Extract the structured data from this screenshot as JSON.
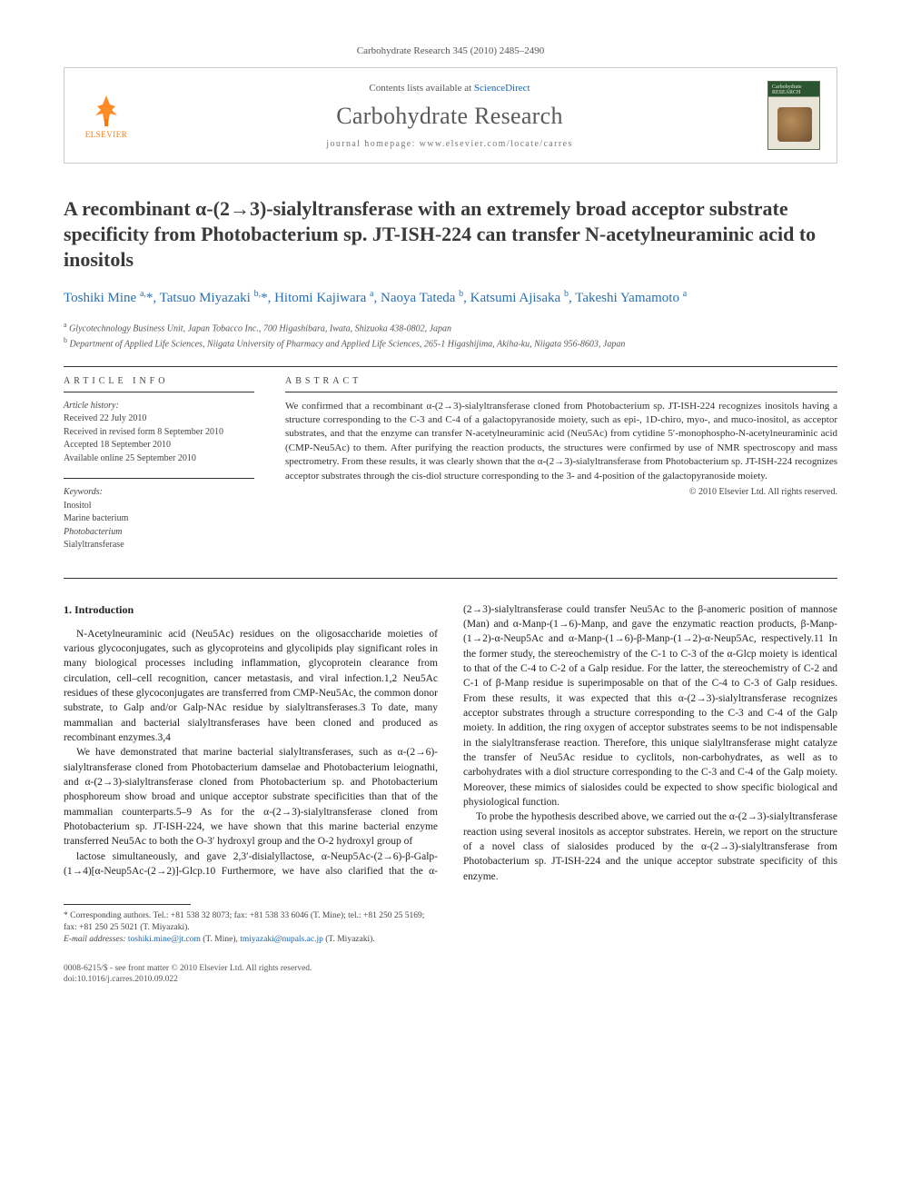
{
  "journal_ref": "Carbohydrate Research 345 (2010) 2485–2490",
  "header": {
    "elsevier_label": "ELSEVIER",
    "contents_prefix": "Contents lists available at ",
    "contents_link": "ScienceDirect",
    "journal_title": "Carbohydrate Research",
    "homepage": "journal homepage: www.elsevier.com/locate/carres",
    "cover_label": "Carbohydrate RESEARCH"
  },
  "title": "A recombinant α-(2→3)-sialyltransferase with an extremely broad acceptor substrate specificity from Photobacterium sp. JT-ISH-224 can transfer N-acetylneuraminic acid to inositols",
  "authors_html": "Toshiki Mine <sup>a,</sup>*, Tatsuo Miyazaki <sup>b,</sup>*, Hitomi Kajiwara <sup>a</sup>, Naoya Tateda <sup>b</sup>, Katsumi Ajisaka <sup>b</sup>, Takeshi Yamamoto <sup>a</sup>",
  "affiliations": [
    {
      "sup": "a",
      "text": "Glycotechnology Business Unit, Japan Tobacco Inc., 700 Higashibara, Iwata, Shizuoka 438-0802, Japan"
    },
    {
      "sup": "b",
      "text": "Department of Applied Life Sciences, Niigata University of Pharmacy and Applied Life Sciences, 265-1 Higashijima, Akiha-ku, Niigata 956-8603, Japan"
    }
  ],
  "info": {
    "head": "ARTICLE INFO",
    "history_label": "Article history:",
    "history": [
      "Received 22 July 2010",
      "Received in revised form 8 September 2010",
      "Accepted 18 September 2010",
      "Available online 25 September 2010"
    ],
    "keywords_label": "Keywords:",
    "keywords": [
      "Inositol",
      "Marine bacterium",
      "Photobacterium",
      "Sialyltransferase"
    ]
  },
  "abstract": {
    "head": "ABSTRACT",
    "text": "We confirmed that a recombinant α-(2→3)-sialyltransferase cloned from Photobacterium sp. JT-ISH-224 recognizes inositols having a structure corresponding to the C-3 and C-4 of a galactopyranoside moiety, such as epi-, 1D-chiro, myo-, and muco-inositol, as acceptor substrates, and that the enzyme can transfer N-acetylneuraminic acid (Neu5Ac) from cytidine 5′-monophospho-N-acetylneuraminic acid (CMP-Neu5Ac) to them. After purifying the reaction products, the structures were confirmed by use of NMR spectroscopy and mass spectrometry. From these results, it was clearly shown that the α-(2→3)-sialyltransferase from Photobacterium sp. JT-ISH-224 recognizes acceptor substrates through the cis-diol structure corresponding to the 3- and 4-position of the galactopyranoside moiety.",
    "copyright": "© 2010 Elsevier Ltd. All rights reserved."
  },
  "intro": {
    "head": "1. Introduction",
    "p1": "N-Acetylneuraminic acid (Neu5Ac) residues on the oligosaccharide moieties of various glycoconjugates, such as glycoproteins and glycolipids play significant roles in many biological processes including inflammation, glycoprotein clearance from circulation, cell–cell recognition, cancer metastasis, and viral infection.1,2 Neu5Ac residues of these glycoconjugates are transferred from CMP-Neu5Ac, the common donor substrate, to Galp and/or Galp-NAc residue by sialyltransferases.3 To date, many mammalian and bacterial sialyltransferases have been cloned and produced as recombinant enzymes.3,4",
    "p2": "We have demonstrated that marine bacterial sialyltransferases, such as α-(2→6)-sialyltransferase cloned from Photobacterium damselae and Photobacterium leiognathi, and α-(2→3)-sialyltransferase cloned from Photobacterium sp. and Photobacterium phosphoreum show broad and unique acceptor substrate specificities than that of the mammalian counterparts.5–9 As for the α-(2→3)-sialyltransferase cloned from Photobacterium sp. JT-ISH-224, we have shown that this marine bacterial enzyme transferred Neu5Ac to both the O-3′ hydroxyl group and the O-2 hydroxyl group of",
    "p3": "lactose simultaneously, and gave 2,3′-disialyllactose, α-Neup5Ac-(2→6)-β-Galp-(1→4)[α-Neup5Ac-(2→2)]-Glcp.10 Furthermore, we have also clarified that the α-(2→3)-sialyltransferase could transfer Neu5Ac to the β-anomeric position of mannose (Man) and α-Manp-(1→6)-Manp, and gave the enzymatic reaction products, β-Manp-(1→2)-α-Neup5Ac and α-Manp-(1→6)-β-Manp-(1→2)-α-Neup5Ac, respectively.11 In the former study, the stereochemistry of the C-1 to C-3 of the α-Glcp moiety is identical to that of the C-4 to C-2 of a Galp residue. For the latter, the stereochemistry of C-2 and C-1 of β-Manp residue is superimposable on that of the C-4 to C-3 of Galp residues. From these results, it was expected that this α-(2→3)-sialyltransferase recognizes acceptor substrates through a structure corresponding to the C-3 and C-4 of the Galp moiety. In addition, the ring oxygen of acceptor substrates seems to be not indispensable in the sialyltransferase reaction. Therefore, this unique sialyltransferase might catalyze the transfer of Neu5Ac residue to cyclitols, non-carbohydrates, as well as to carbohydrates with a diol structure corresponding to the C-3 and C-4 of the Galp moiety. Moreover, these mimics of sialosides could be expected to show specific biological and physiological function.",
    "p4": "To probe the hypothesis described above, we carried out the α-(2→3)-sialyltransferase reaction using several inositols as acceptor substrates. Herein, we report on the structure of a novel class of sialosides produced by the α-(2→3)-sialyltransferase from Photobacterium sp. JT-ISH-224 and the unique acceptor substrate specificity of this enzyme."
  },
  "footnotes": {
    "corr": "* Corresponding authors. Tel.: +81 538 32 8073; fax: +81 538 33 6046 (T. Mine); tel.: +81 250 25 5169; fax: +81 250 25 5021 (T. Miyazaki).",
    "email_label": "E-mail addresses:",
    "email_1": "toshiki.mine@jt.com",
    "email_1_who": " (T. Mine), ",
    "email_2": "tmiyazaki@nupals.ac.jp",
    "email_2_who": " (T. Miyazaki)."
  },
  "bottom": {
    "line1": "0008-6215/$ - see front matter © 2010 Elsevier Ltd. All rights reserved.",
    "line2": "doi:10.1016/j.carres.2010.09.022"
  },
  "colors": {
    "link": "#1864b2",
    "author": "#2b6fb0",
    "elsevier": "#ff7700",
    "rule": "#333333"
  }
}
